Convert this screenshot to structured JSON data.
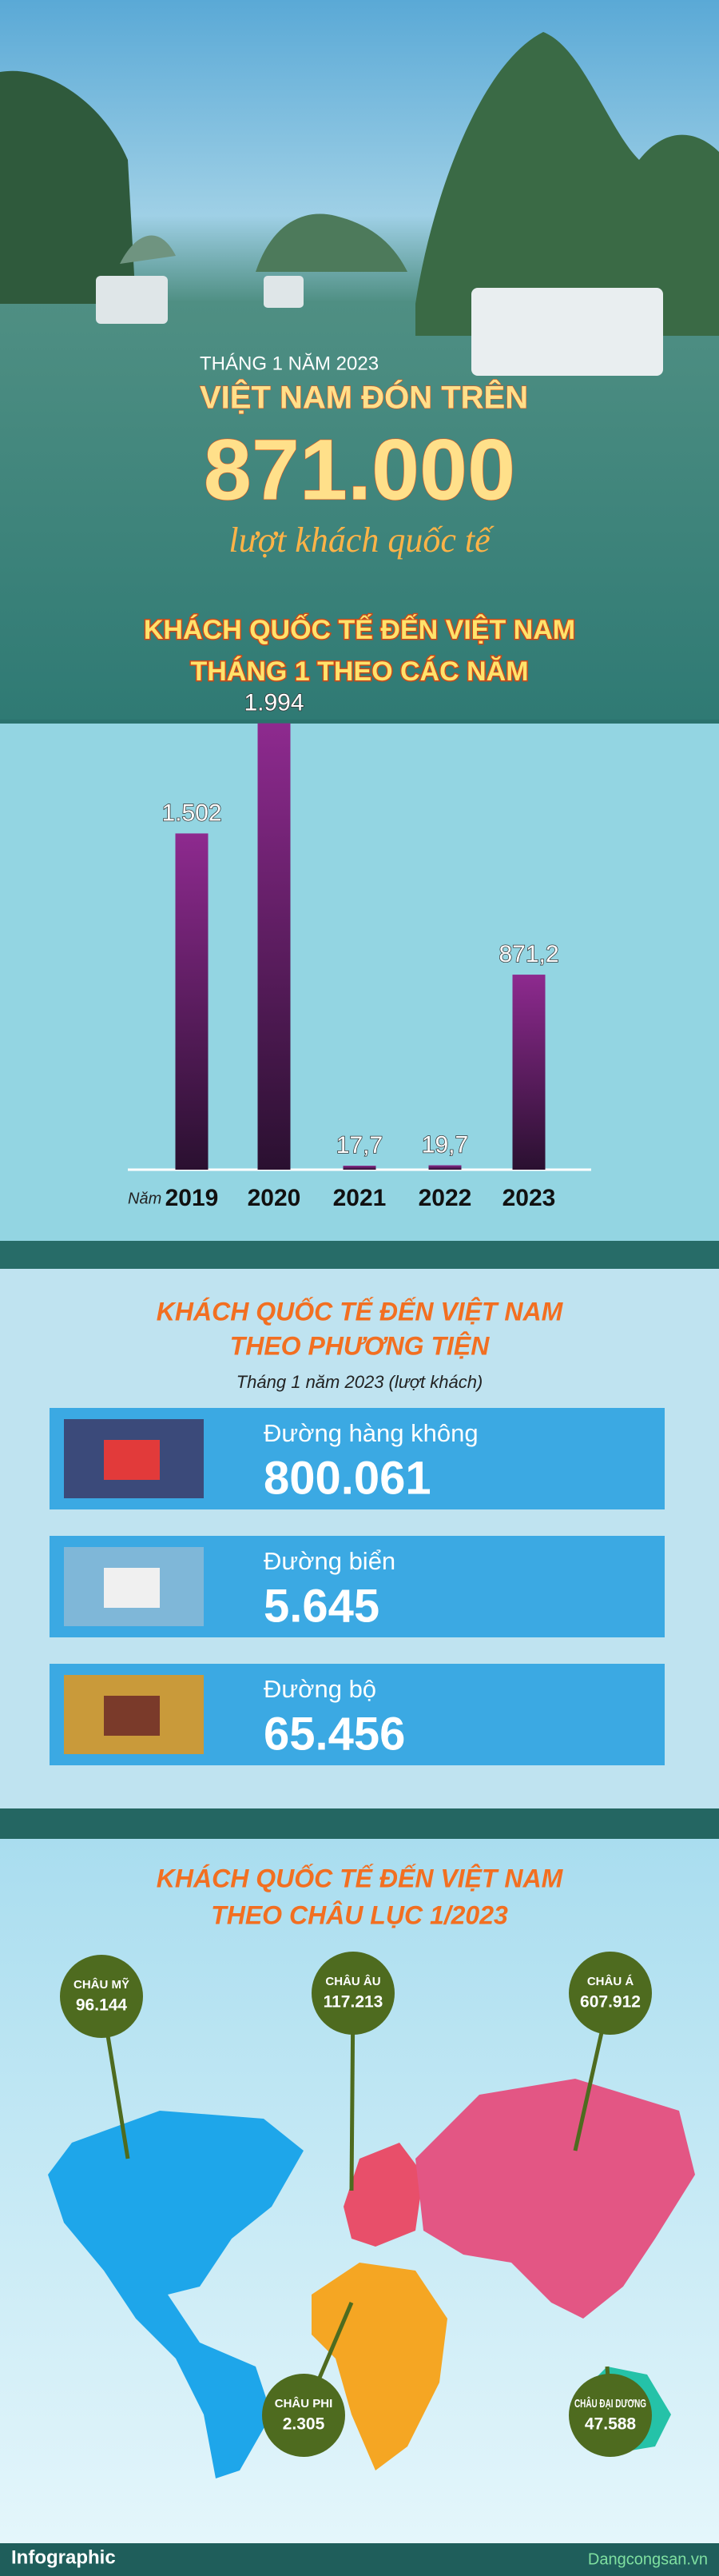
{
  "header": {
    "kicker": "THÁNG 1 NĂM 2023",
    "headline": "VIỆT NAM ĐÓN TRÊN",
    "big_number": "871.000",
    "tagline": "lượt khách quốc tế"
  },
  "chart_data": {
    "type": "bar",
    "title": "KHÁCH QUỐC TẾ ĐẾN VIỆT NAM",
    "subtitle": "THÁNG 1 THEO CÁC NĂM",
    "x_label": "Năm",
    "categories": [
      "2019",
      "2020",
      "2021",
      "2022",
      "2023"
    ],
    "values": [
      1502,
      1994,
      17.7,
      19.7,
      871.2
    ],
    "value_labels": [
      "1.502",
      "1.994",
      "17,7",
      "19,7",
      "871,2"
    ],
    "color": "#8e2a8f",
    "ylim": [
      0,
      2000
    ]
  },
  "transport": {
    "title": "KHÁCH QUỐC TẾ ĐẾN VIỆT NAM",
    "subtitle": "THEO PHƯƠNG TIỆN",
    "note": "Tháng 1 năm 2023 (lượt khách)",
    "rows": [
      {
        "label": "Đường hàng không",
        "value": "800.061"
      },
      {
        "label": "Đường biển",
        "value": "5.645"
      },
      {
        "label": "Đường bộ",
        "value": "65.456"
      }
    ]
  },
  "continents": {
    "title": "KHÁCH QUỐC TẾ ĐẾN VIỆT NAM",
    "subtitle": "THEO CHÂU LỤC 1/2023",
    "items": [
      {
        "name": "CHÂU MỸ",
        "value": "96.144"
      },
      {
        "name": "CHÂU ÂU",
        "value": "117.213"
      },
      {
        "name": "CHÂU Á",
        "value": "607.912"
      },
      {
        "name": "CHÂU PHI",
        "value": "2.305"
      },
      {
        "name": "CHÂU ĐẠI DƯƠNG",
        "value": "47.588"
      }
    ]
  },
  "footer": {
    "left": "Infographic",
    "right": "Dangcongsan.vn"
  }
}
